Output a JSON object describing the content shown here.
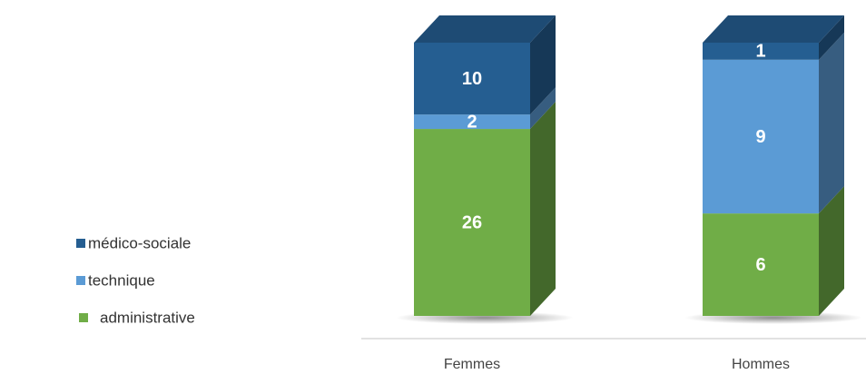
{
  "chart_data": {
    "type": "bar",
    "stacking": "percent",
    "categories": [
      "Femmes",
      "Hommes"
    ],
    "series": [
      {
        "name": "administrative",
        "color": "#70ad47",
        "values": [
          26,
          6
        ]
      },
      {
        "name": "technique",
        "color": "#5b9bd5",
        "values": [
          2,
          9
        ]
      },
      {
        "name": "médico-sociale",
        "color": "#255e91",
        "values": [
          10,
          1
        ]
      }
    ]
  }
}
